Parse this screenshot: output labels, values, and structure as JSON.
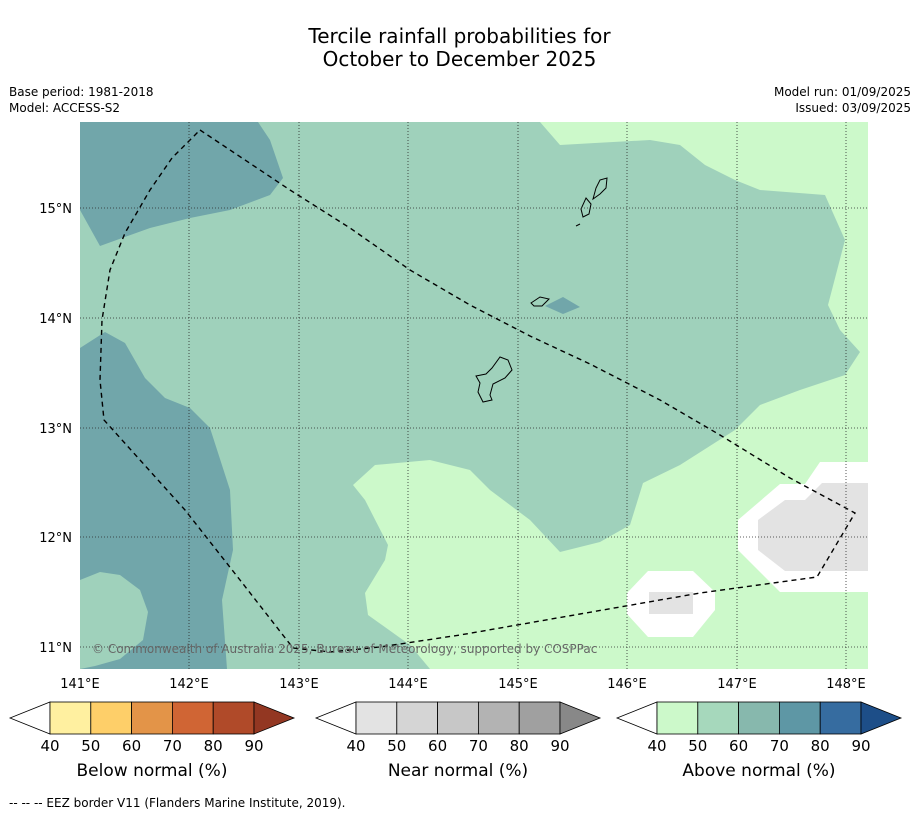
{
  "title_line1": "Tercile rainfall probabilities for",
  "title_line2": "October to December 2025",
  "base_period": "Base period: 1981-2018",
  "model": "Model: ACCESS-S2",
  "model_run": "Model run: 01/09/2025",
  "issued": "Issued: 03/09/2025",
  "lat_labels": [
    "15°N",
    "14°N",
    "13°N",
    "12°N",
    "11°N"
  ],
  "lon_labels": [
    "141°E",
    "142°E",
    "143°E",
    "144°E",
    "145°E",
    "146°E",
    "147°E",
    "148°E"
  ],
  "copyright": "© Commonwealth of Australia 2025, Bureau of Meteorology, supported by COSPPac",
  "colorbars": [
    {
      "label": "Below normal (%)",
      "ticks": [
        "40",
        "50",
        "60",
        "70",
        "80",
        "90"
      ],
      "colors": [
        "#ffffff",
        "#fff0a0",
        "#fecf69",
        "#e39448",
        "#d06534",
        "#b04a29",
        "#933722"
      ]
    },
    {
      "label": "Near normal (%)",
      "ticks": [
        "40",
        "50",
        "60",
        "70",
        "80",
        "90"
      ],
      "colors": [
        "#ffffff",
        "#e3e3e3",
        "#d5d5d5",
        "#c7c7c7",
        "#b3b3b3",
        "#a0a0a0",
        "#888888"
      ]
    },
    {
      "label": "Above normal (%)",
      "ticks": [
        "40",
        "50",
        "60",
        "70",
        "80",
        "90"
      ],
      "colors": [
        "#ffffff",
        "#ccf9ca",
        "#a6d8bc",
        "#87b8ad",
        "#5e97a5",
        "#366ca0",
        "#1d4e88"
      ]
    }
  ],
  "footer": "--  --  -- EEZ border V11 (Flanders Marine Institute, 2019)."
}
